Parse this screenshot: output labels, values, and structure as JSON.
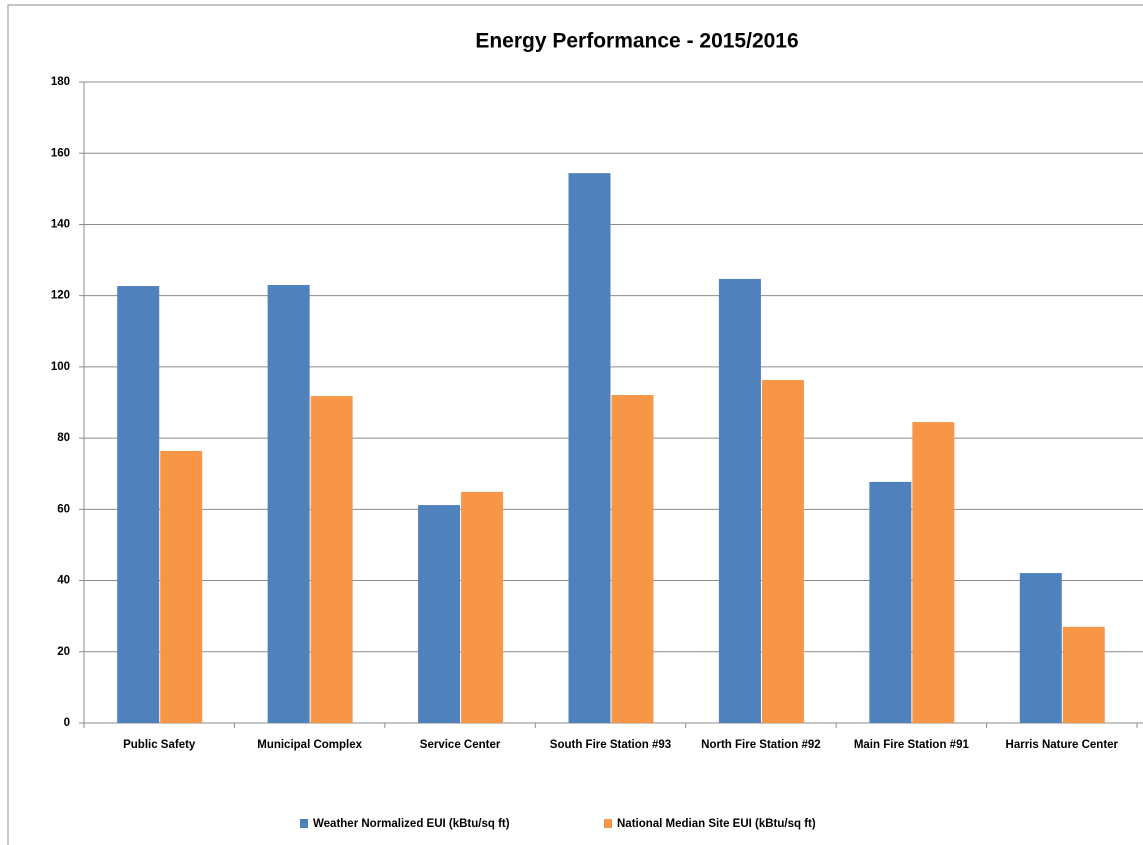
{
  "chart_data": {
    "type": "bar",
    "title": "Energy Performance - 2015/2016",
    "categories": [
      "Public Safety",
      "Municipal Complex",
      "Service Center",
      "South Fire Station #93",
      "North Fire Station #92",
      "Main Fire Station #91",
      "Harris Nature Center"
    ],
    "series": [
      {
        "name": "Weather Normalized EUI (kBtu/sq ft)",
        "color": "#4f81bd",
        "values": [
          122.7,
          123,
          61.2,
          154.4,
          124.7,
          67.7,
          42.1
        ]
      },
      {
        "name": "National Median Site EUI (kBtu/sq ft)",
        "color": "#f79646",
        "values": [
          76.4,
          91.8,
          64.9,
          92.1,
          96.3,
          84.5,
          27
        ]
      }
    ],
    "ylim": [
      0,
      180
    ],
    "yticks": [
      0,
      20,
      40,
      60,
      80,
      100,
      120,
      140,
      160,
      180
    ],
    "grid": true,
    "legend": "bottom"
  }
}
